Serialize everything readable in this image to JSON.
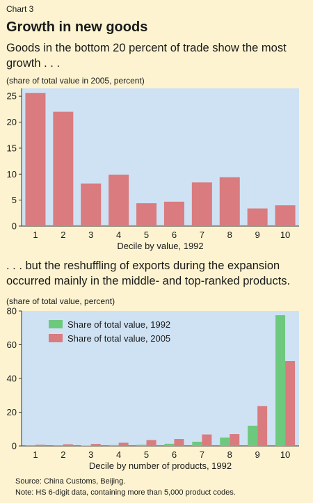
{
  "header": {
    "chart_number": "Chart 3",
    "title": "Growth in new goods"
  },
  "footer": {
    "source": "Source: China Customs, Beijing.",
    "note": "Note: HS 6-digit data, containing more than 5,000 product codes."
  },
  "colors": {
    "background": "#fdf3d0",
    "plot_bg": "#cfe2f3",
    "bar_2005": "#d97b7f",
    "bar_1992": "#6dc97e"
  },
  "chart_data": [
    {
      "type": "bar",
      "subtitle": "Goods in the bottom 20 percent of trade show the most growth . . .",
      "ylabel": "(share of total value in 2005, percent)",
      "xlabel": "Decile by value, 1992",
      "categories": [
        "1",
        "2",
        "3",
        "4",
        "5",
        "6",
        "7",
        "8",
        "9",
        "10"
      ],
      "values": [
        25.6,
        22.0,
        8.2,
        9.9,
        4.4,
        4.7,
        8.4,
        9.4,
        3.4,
        4.0
      ],
      "ylim": [
        0,
        26.5
      ],
      "yticks": [
        0,
        5,
        10,
        15,
        20,
        25
      ],
      "grid": false
    },
    {
      "type": "bar",
      "subtitle": ". . . but the reshuffling of exports during the expansion occurred mainly in the middle- and top-ranked products.",
      "ylabel": "(share of total value, percent)",
      "xlabel": "Decile by number of products, 1992",
      "categories": [
        "1",
        "2",
        "3",
        "4",
        "5",
        "6",
        "7",
        "8",
        "9",
        "10"
      ],
      "series": [
        {
          "name": "Share of total value, 1992",
          "values": [
            0.1,
            0.1,
            0.2,
            0.5,
            0.7,
            1.3,
            2.5,
            5.0,
            12.0,
            77.5
          ]
        },
        {
          "name": "Share of total value, 2005",
          "values": [
            0.7,
            1.0,
            1.2,
            1.9,
            3.5,
            4.1,
            6.8,
            7.0,
            23.6,
            50.3
          ]
        }
      ],
      "ylim": [
        0,
        80
      ],
      "yticks": [
        0,
        20,
        40,
        60,
        80
      ],
      "legend": "top-left",
      "grid": false
    }
  ]
}
